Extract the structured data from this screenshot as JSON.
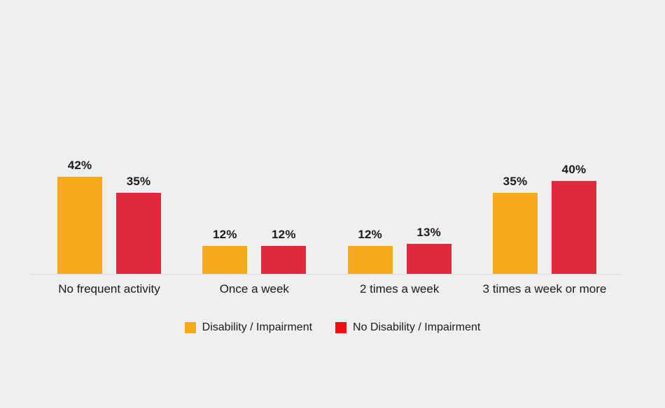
{
  "canvas": {
    "background": "#F0EFEF",
    "text_color": "#1A1A1A",
    "axis_line_color": "#DFDDDD"
  },
  "chart_data": {
    "type": "bar",
    "categories": [
      "No frequent activity",
      "Once a week",
      "2 times a week",
      "3 times a week or more"
    ],
    "series": [
      {
        "name": "Disability / Impairment",
        "color": "#F7A81B",
        "values": [
          42,
          12,
          12,
          35
        ]
      },
      {
        "name": "No Disability / Impairment",
        "color": "#E02A3B",
        "values": [
          35,
          12,
          13,
          40
        ]
      }
    ],
    "value_suffix": "%",
    "ylim": [
      0,
      45
    ],
    "grid": false,
    "x_axis_line": true,
    "legend_position": "bottom-center",
    "legend": [
      {
        "label": "Disability / Impairment",
        "swatch_color": "#F7A81B"
      },
      {
        "label": "No Disability / Impairment",
        "swatch_color": "#EE1111"
      }
    ]
  }
}
